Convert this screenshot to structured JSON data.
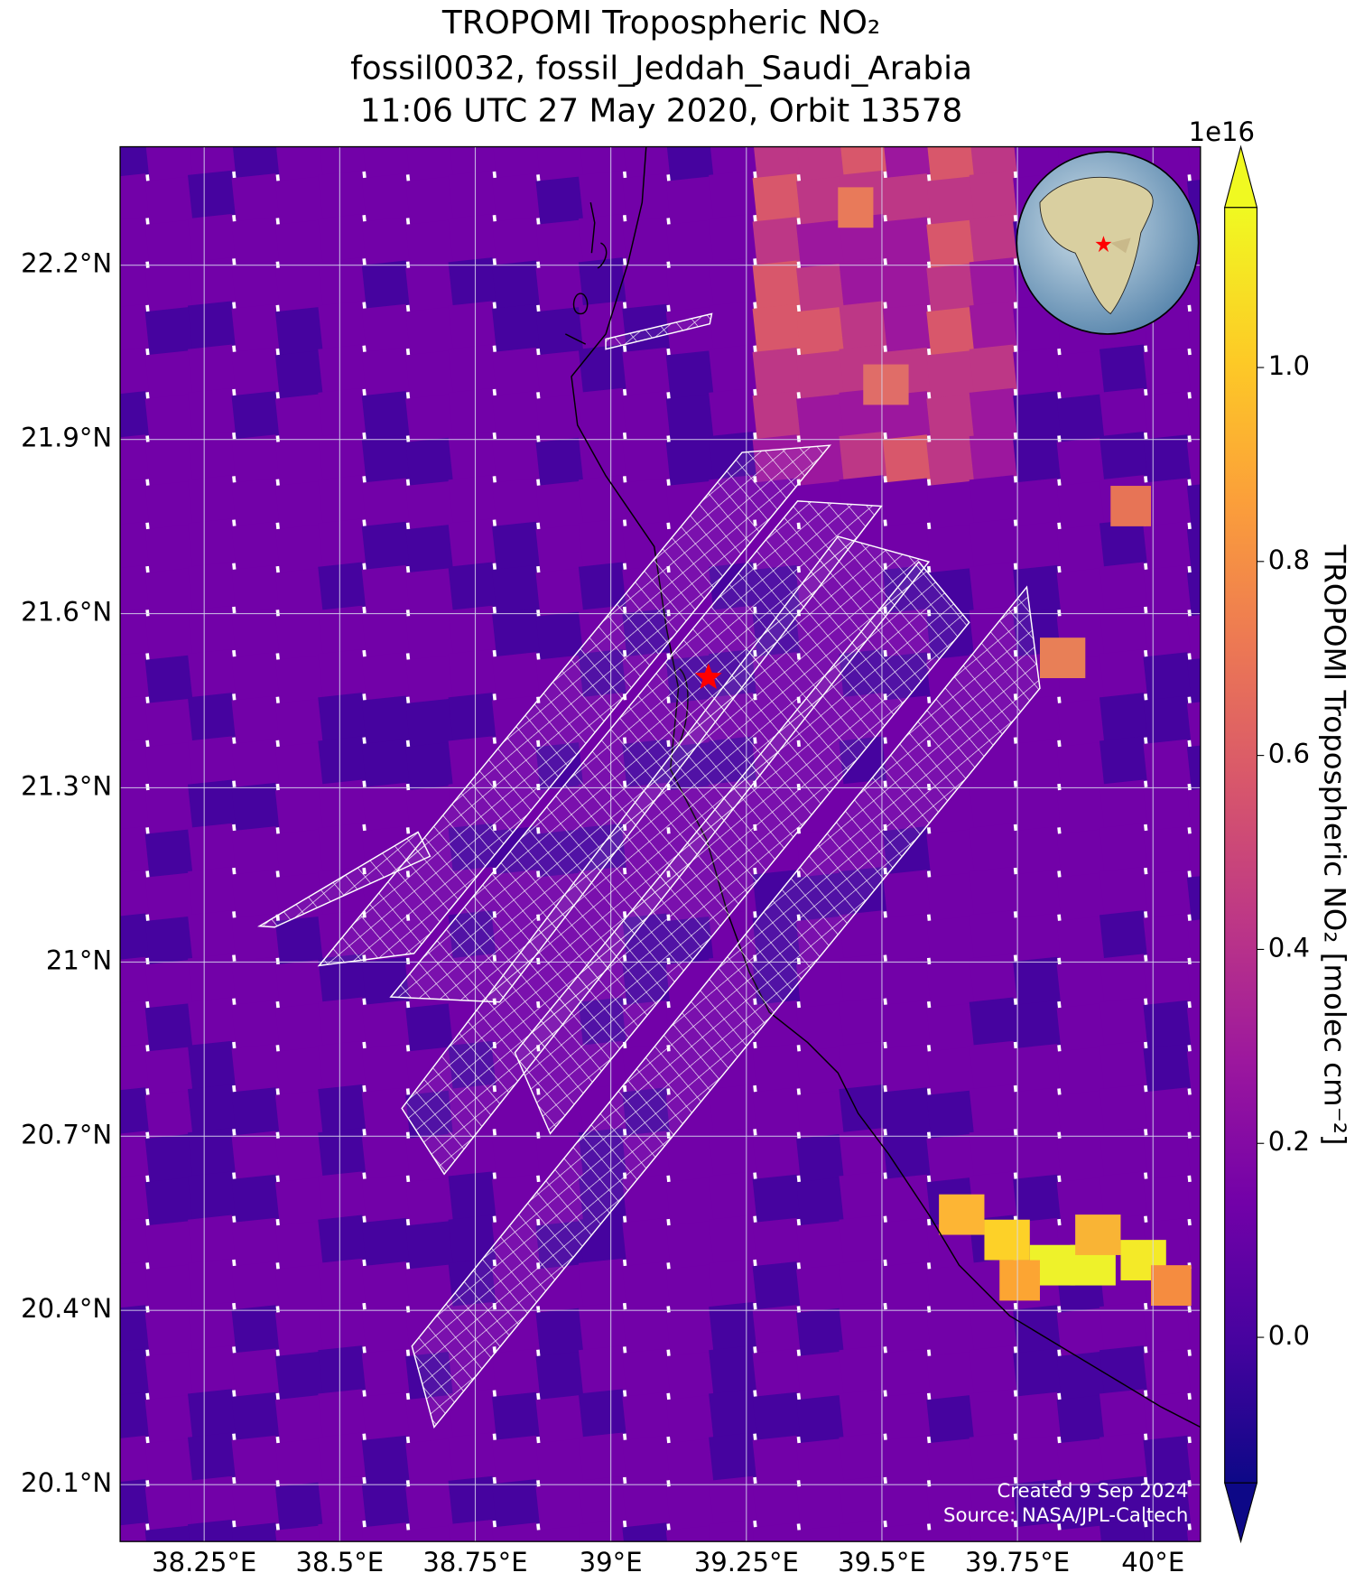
{
  "chart_data": {
    "type": "map",
    "title": [
      "TROPOMI Tropospheric NO₂",
      "fossil0032, fossil_Jeddah_Saudi_Arabia",
      "11:06 UTC 27 May 2020, Orbit 13578"
    ],
    "xlim": [
      38.095,
      40.0875
    ],
    "ylim": [
      20.002,
      22.404
    ],
    "xticks": [
      {
        "value": 38.25,
        "label": "38.25°E"
      },
      {
        "value": 38.5,
        "label": "38.5°E"
      },
      {
        "value": 38.75,
        "label": "38.75°E"
      },
      {
        "value": 39,
        "label": "39°E"
      },
      {
        "value": 39.25,
        "label": "39.25°E"
      },
      {
        "value": 39.5,
        "label": "39.5°E"
      },
      {
        "value": 39.75,
        "label": "39.75°E"
      },
      {
        "value": 40,
        "label": "40°E"
      }
    ],
    "yticks": [
      {
        "value": 20.1,
        "label": "20.1°N"
      },
      {
        "value": 20.4,
        "label": "20.4°N"
      },
      {
        "value": 20.7,
        "label": "20.7°N"
      },
      {
        "value": 21,
        "label": "21°N"
      },
      {
        "value": 21.3,
        "label": "21.3°N"
      },
      {
        "value": 21.6,
        "label": "21.6°N"
      },
      {
        "value": 21.9,
        "label": "21.9°N"
      },
      {
        "value": 22.2,
        "label": "22.2°N"
      }
    ],
    "grid": true,
    "site": {
      "lon": 39.18,
      "lat": 21.49
    },
    "colorbar": {
      "label": "TROPOMI Tropospheric NO₂ [molec cm⁻²]",
      "offset_label": "1e16",
      "lim": [
        -0.15,
        1.165
      ],
      "ticks": [
        {
          "value": 0,
          "label": "0.0"
        },
        0.2,
        0.4,
        0.6,
        0.8,
        {
          "value": 1,
          "label": "1.0"
        }
      ]
    },
    "credits": [
      "Created 9 Sep 2024",
      "Source: NASA/JPL-Caltech"
    ]
  }
}
